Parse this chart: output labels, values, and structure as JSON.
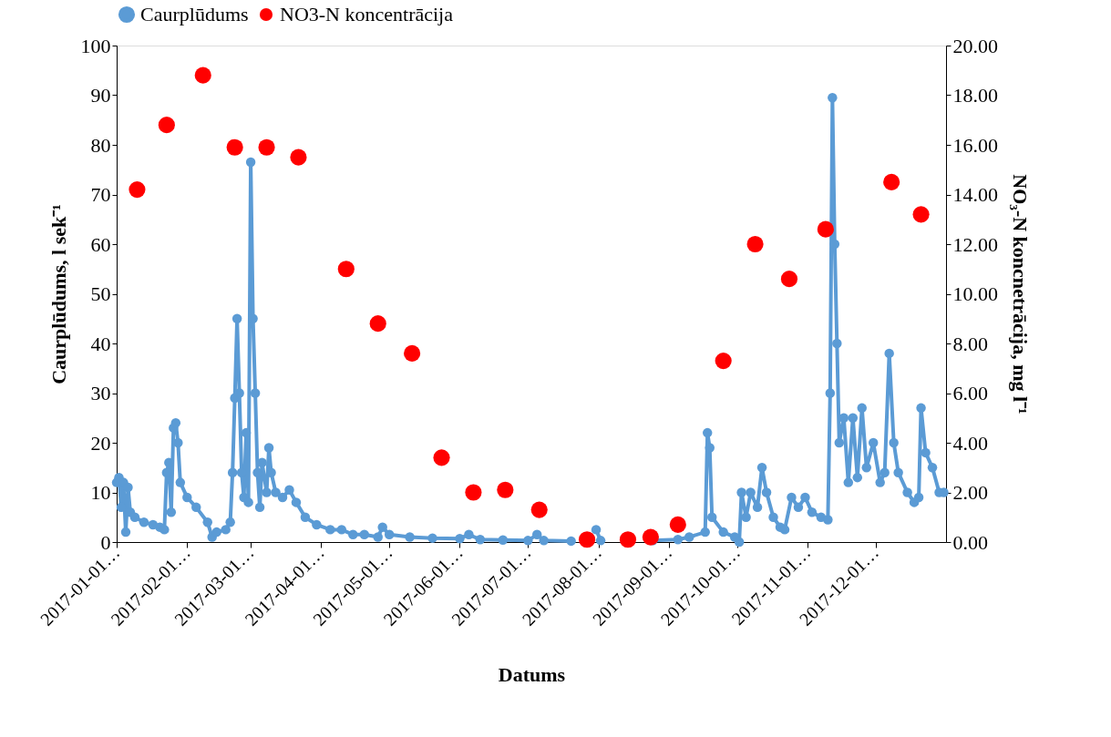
{
  "chart_data": {
    "type": "line",
    "xlabel": "Datums",
    "ylabel": "Caurplūdums, l sek⁻¹",
    "y2label": "NO₃-N koncnetrācija, mg l⁻¹",
    "legend": "top",
    "xlim": [
      "2017-01-01",
      "2018-01-01"
    ],
    "xticks": [
      {
        "value": "2017-01-01",
        "label": "2017-01-01…"
      },
      {
        "value": "2017-02-01",
        "label": "2017-02-01…"
      },
      {
        "value": "2017-03-01",
        "label": "2017-03-01…"
      },
      {
        "value": "2017-04-01",
        "label": "2017-04-01…"
      },
      {
        "value": "2017-05-01",
        "label": "2017-05-01…"
      },
      {
        "value": "2017-06-01",
        "label": "2017-06-01…"
      },
      {
        "value": "2017-07-01",
        "label": "2017-07-01…"
      },
      {
        "value": "2017-08-01",
        "label": "2017-08-01…"
      },
      {
        "value": "2017-09-01",
        "label": "2017-09-01…"
      },
      {
        "value": "2017-10-01",
        "label": "2017-10-01…"
      },
      {
        "value": "2017-11-01",
        "label": "2017-11-01…"
      },
      {
        "value": "2017-12-01",
        "label": "2017-12-01…"
      }
    ],
    "ylim": [
      0,
      100
    ],
    "yticks": [
      0,
      10,
      20,
      30,
      40,
      50,
      60,
      70,
      80,
      90,
      100
    ],
    "y2lim": [
      0,
      20
    ],
    "y2ticks": [
      {
        "value": 0,
        "label": "0.00"
      },
      {
        "value": 2,
        "label": "2.00"
      },
      {
        "value": 4,
        "label": "4.00"
      },
      {
        "value": 6,
        "label": "6.00"
      },
      {
        "value": 8,
        "label": "8.00"
      },
      {
        "value": 10,
        "label": "10.00"
      },
      {
        "value": 12,
        "label": "12.00"
      },
      {
        "value": 14,
        "label": "14.00"
      },
      {
        "value": 16,
        "label": "16.00"
      },
      {
        "value": 18,
        "label": "18.00"
      },
      {
        "value": 20,
        "label": "20.00"
      }
    ],
    "series": [
      {
        "name": "Caurplūdums",
        "color": "#5b9bd5",
        "marker": "circle",
        "x": [
          "2017-01-01",
          "2017-01-02",
          "2017-01-03",
          "2017-01-04",
          "2017-01-05",
          "2017-01-06",
          "2017-01-07",
          "2017-01-09",
          "2017-01-13",
          "2017-01-17",
          "2017-01-20",
          "2017-01-22",
          "2017-01-23",
          "2017-01-24",
          "2017-01-25",
          "2017-01-26",
          "2017-01-27",
          "2017-01-28",
          "2017-01-29",
          "2017-02-01",
          "2017-02-05",
          "2017-02-10",
          "2017-02-12",
          "2017-02-14",
          "2017-02-18",
          "2017-02-20",
          "2017-02-21",
          "2017-02-22",
          "2017-02-23",
          "2017-02-24",
          "2017-02-25",
          "2017-02-26",
          "2017-02-27",
          "2017-02-28",
          "2017-03-01",
          "2017-03-02",
          "2017-03-03",
          "2017-03-04",
          "2017-03-05",
          "2017-03-06",
          "2017-03-08",
          "2017-03-09",
          "2017-03-10",
          "2017-03-12",
          "2017-03-15",
          "2017-03-18",
          "2017-03-21",
          "2017-03-25",
          "2017-03-30",
          "2017-04-05",
          "2017-04-10",
          "2017-04-15",
          "2017-04-20",
          "2017-04-26",
          "2017-04-28",
          "2017-05-01",
          "2017-05-10",
          "2017-05-20",
          "2017-06-01",
          "2017-06-05",
          "2017-06-10",
          "2017-06-20",
          "2017-07-01",
          "2017-07-05",
          "2017-07-08",
          "2017-07-20",
          "2017-07-28",
          "2017-07-31",
          "2017-08-02",
          "2017-08-15",
          "2017-08-25",
          "2017-09-05",
          "2017-09-10",
          "2017-09-17",
          "2017-09-18",
          "2017-09-19",
          "2017-09-20",
          "2017-09-25",
          "2017-09-30",
          "2017-10-02",
          "2017-10-03",
          "2017-10-05",
          "2017-10-07",
          "2017-10-10",
          "2017-10-12",
          "2017-10-14",
          "2017-10-17",
          "2017-10-20",
          "2017-10-22",
          "2017-10-25",
          "2017-10-28",
          "2017-10-31",
          "2017-11-03",
          "2017-11-07",
          "2017-11-10",
          "2017-11-11",
          "2017-11-12",
          "2017-11-13",
          "2017-11-14",
          "2017-11-15",
          "2017-11-17",
          "2017-11-19",
          "2017-11-21",
          "2017-11-23",
          "2017-11-25",
          "2017-11-27",
          "2017-11-30",
          "2017-12-03",
          "2017-12-05",
          "2017-12-07",
          "2017-12-09",
          "2017-12-11",
          "2017-12-15",
          "2017-12-18",
          "2017-12-20",
          "2017-12-21",
          "2017-12-23",
          "2017-12-26",
          "2017-12-29",
          "2017-12-31"
        ],
        "values": [
          12,
          13,
          7,
          12,
          2,
          11,
          6,
          5,
          4,
          3.5,
          3,
          2.5,
          14,
          16,
          6,
          23,
          24,
          20,
          12,
          9,
          7,
          4,
          1,
          2,
          2.5,
          4,
          14,
          29,
          45,
          30,
          14,
          9,
          22,
          8,
          76.5,
          45,
          30,
          14,
          7,
          16,
          10,
          19,
          14,
          10,
          9,
          10.5,
          8,
          5,
          3.5,
          2.5,
          2.5,
          1.5,
          1.5,
          1,
          3,
          1.5,
          1,
          0.8,
          0.7,
          1.5,
          0.5,
          0.4,
          0.3,
          1.5,
          0.3,
          0.2,
          null,
          2.5,
          0.3,
          null,
          0.3,
          0.5,
          1,
          2,
          22,
          19,
          5,
          2,
          1,
          0,
          10,
          5,
          10,
          7,
          15,
          10,
          5,
          3,
          2.5,
          9,
          7,
          9,
          6,
          5,
          4.5,
          30,
          89.5,
          60,
          40,
          20,
          25,
          12,
          25,
          13,
          27,
          15,
          20,
          12,
          14,
          38,
          20,
          14,
          10,
          8,
          9,
          27,
          18,
          15,
          10,
          10
        ]
      },
      {
        "name": "NO3-N koncentrācija",
        "type": "scatter",
        "axis": "y2",
        "color": "#ff0000",
        "marker": "circle",
        "x": [
          "2017-01-10",
          "2017-01-23",
          "2017-02-08",
          "2017-02-22",
          "2017-03-08",
          "2017-03-22",
          "2017-04-12",
          "2017-04-26",
          "2017-05-11",
          "2017-05-24",
          "2017-06-07",
          "2017-06-21",
          "2017-07-06",
          "2017-07-27",
          "2017-08-14",
          "2017-08-24",
          "2017-09-05",
          "2017-09-25",
          "2017-10-09",
          "2017-10-24",
          "2017-11-09",
          "2017-12-08",
          "2017-12-21"
        ],
        "values": [
          14.2,
          16.8,
          18.8,
          15.9,
          15.9,
          15.5,
          11.0,
          8.8,
          7.6,
          3.4,
          2.0,
          2.1,
          1.3,
          0.1,
          0.1,
          0.2,
          0.7,
          7.3,
          12.0,
          10.6,
          12.6,
          14.5,
          13.2
        ]
      }
    ]
  }
}
